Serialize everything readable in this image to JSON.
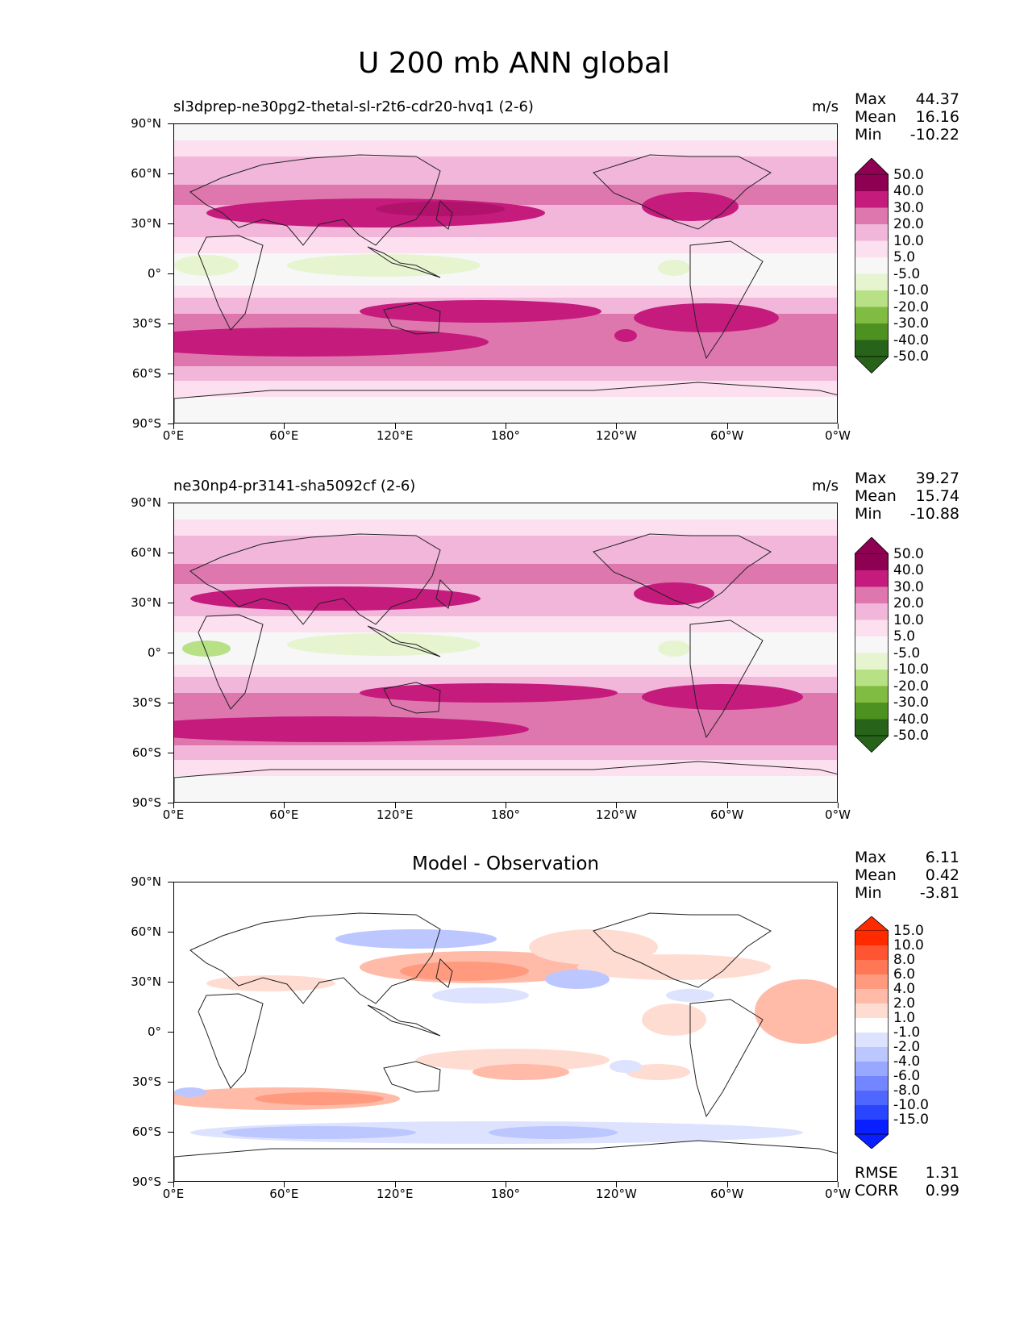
{
  "title": "U 200 mb ANN global",
  "units": "m/s",
  "colors": {
    "pink": [
      "#8e0152",
      "#c51b7d",
      "#de77ae",
      "#f1b6da",
      "#fde0ef"
    ],
    "neutral": "#f7f7f7",
    "green": [
      "#e6f5d0",
      "#b8e186",
      "#7fbc41",
      "#4d9221",
      "#276419"
    ],
    "diff_red": [
      "#ff2a00",
      "#ff5533",
      "#ff7755",
      "#ff9a7f",
      "#ffbba8",
      "#ffdcd2"
    ],
    "diff_neutral": "#ffffff",
    "diff_blue": [
      "#dde2ff",
      "#bcc6ff",
      "#98a8ff",
      "#7386ff",
      "#4f66ff",
      "#2a45ff",
      "#0a1fff"
    ]
  },
  "panels": [
    {
      "label": "sl3dprep-ne30pg2-thetal-sl-r2t6-cdr20-hvq1 (2-6)",
      "units": "m/s",
      "stats": {
        "max_label": "Max",
        "max": "44.37",
        "mean_label": "Mean",
        "mean": "16.16",
        "min_label": "Min",
        "min": "-10.22"
      },
      "colorbar_levels": [
        "50.0",
        "40.0",
        "30.0",
        "20.0",
        "10.0",
        "5.0",
        "-5.0",
        "-10.0",
        "-20.0",
        "-30.0",
        "-40.0",
        "-50.0"
      ]
    },
    {
      "label": "ne30np4-pr3141-sha5092cf (2-6)",
      "units": "m/s",
      "stats": {
        "max_label": "Max",
        "max": "39.27",
        "mean_label": "Mean",
        "mean": "15.74",
        "min_label": "Min",
        "min": "-10.88"
      },
      "colorbar_levels": [
        "50.0",
        "40.0",
        "30.0",
        "20.0",
        "10.0",
        "5.0",
        "-5.0",
        "-10.0",
        "-20.0",
        "-30.0",
        "-40.0",
        "-50.0"
      ]
    },
    {
      "label": "Model - Observation",
      "stats": {
        "max_label": "Max",
        "max": "6.11",
        "mean_label": "Mean",
        "mean": "0.42",
        "min_label": "Min",
        "min": "-3.81"
      },
      "colorbar_levels": [
        "15.0",
        "10.0",
        "8.0",
        "6.0",
        "4.0",
        "2.0",
        "1.0",
        "-1.0",
        "-2.0",
        "-4.0",
        "-6.0",
        "-8.0",
        "-10.0",
        "-15.0"
      ],
      "rmse_label": "RMSE",
      "rmse": "1.31",
      "corr_label": "CORR",
      "corr": "0.99"
    }
  ],
  "lat_labels": [
    "90°N",
    "60°N",
    "30°N",
    "0°",
    "30°S",
    "60°S",
    "90°S"
  ],
  "lon_labels": [
    "0°E",
    "60°E",
    "120°E",
    "180°",
    "120°W",
    "60°W",
    "0°W"
  ]
}
